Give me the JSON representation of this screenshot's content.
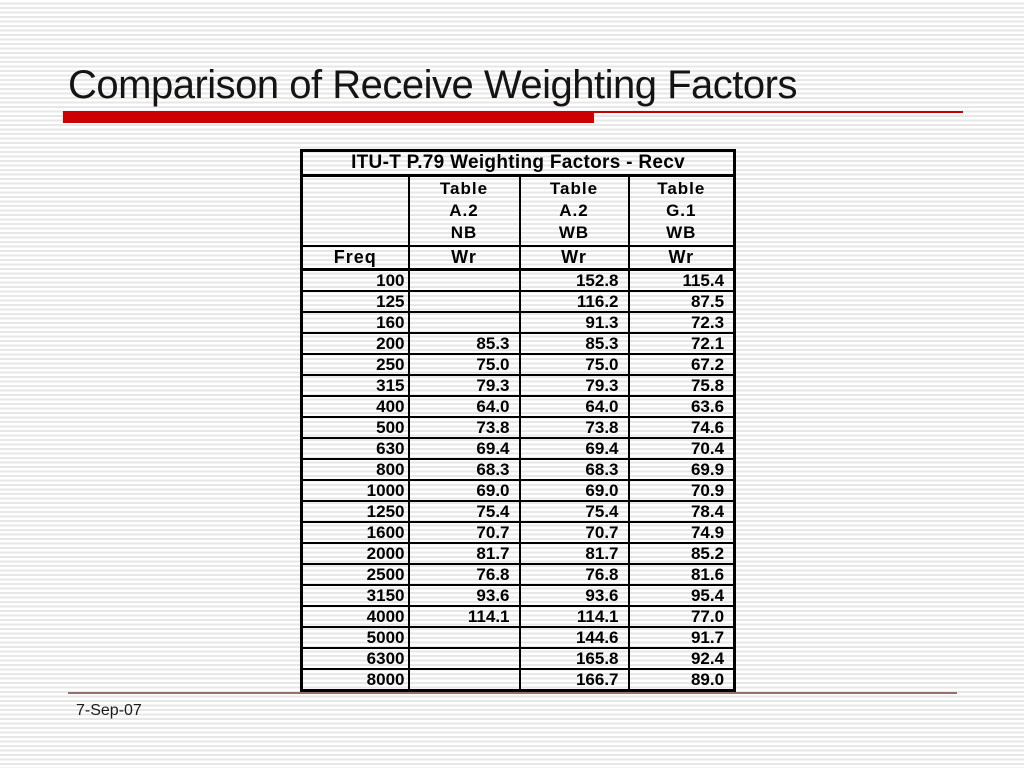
{
  "slide": {
    "title": "Comparison of Receive Weighting Factors",
    "date": "7-Sep-07"
  },
  "colors": {
    "accent_red": "#cc0000",
    "footer_line": "#97706e",
    "stripe": "#e7e7e7",
    "table_border": "#000000"
  },
  "table": {
    "caption": "ITU-T P.79 Weighting Factors - Recv",
    "group_headers": [
      "",
      "Table\nA.2\nNB",
      "Table\nA.2\nWB",
      "Table\nG.1\nWB"
    ],
    "col_headers": [
      "Freq",
      "Wr",
      "Wr",
      "Wr"
    ],
    "rows": [
      [
        "100",
        "",
        "152.8",
        "115.4"
      ],
      [
        "125",
        "",
        "116.2",
        "87.5"
      ],
      [
        "160",
        "",
        "91.3",
        "72.3"
      ],
      [
        "200",
        "85.3",
        "85.3",
        "72.1"
      ],
      [
        "250",
        "75.0",
        "75.0",
        "67.2"
      ],
      [
        "315",
        "79.3",
        "79.3",
        "75.8"
      ],
      [
        "400",
        "64.0",
        "64.0",
        "63.6"
      ],
      [
        "500",
        "73.8",
        "73.8",
        "74.6"
      ],
      [
        "630",
        "69.4",
        "69.4",
        "70.4"
      ],
      [
        "800",
        "68.3",
        "68.3",
        "69.9"
      ],
      [
        "1000",
        "69.0",
        "69.0",
        "70.9"
      ],
      [
        "1250",
        "75.4",
        "75.4",
        "78.4"
      ],
      [
        "1600",
        "70.7",
        "70.7",
        "74.9"
      ],
      [
        "2000",
        "81.7",
        "81.7",
        "85.2"
      ],
      [
        "2500",
        "76.8",
        "76.8",
        "81.6"
      ],
      [
        "3150",
        "93.6",
        "93.6",
        "95.4"
      ],
      [
        "4000",
        "114.1",
        "114.1",
        "77.0"
      ],
      [
        "5000",
        "",
        "144.6",
        "91.7"
      ],
      [
        "6300",
        "",
        "165.8",
        "92.4"
      ],
      [
        "8000",
        "",
        "166.7",
        "89.0"
      ]
    ]
  }
}
